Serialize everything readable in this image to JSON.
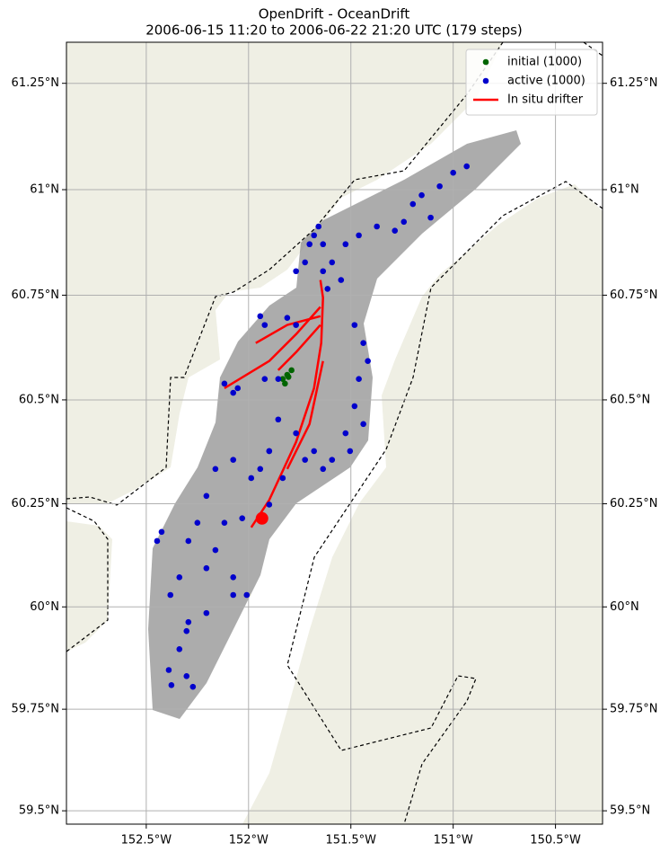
{
  "chart_data": {
    "type": "map",
    "title": "OpenDrift - OceanDrift",
    "subtitle": "2006-06-15 11:20 to 2006-06-22 21:20 UTC (179 steps)",
    "xlim": [
      -152.89,
      -150.27
    ],
    "ylim": [
      59.467,
      61.346
    ],
    "projection": "mercator",
    "grid": true,
    "legend": "upper right",
    "xticks": [
      {
        "value": -152.5,
        "label": "152.5°W"
      },
      {
        "value": -152,
        "label": "152°W"
      },
      {
        "value": -151.5,
        "label": "151.5°W"
      },
      {
        "value": -151,
        "label": "151°W"
      },
      {
        "value": -150.5,
        "label": "150.5°W"
      }
    ],
    "yticks": [
      {
        "value": 59.5,
        "label": "59.5°N"
      },
      {
        "value": 59.75,
        "label": "59.75°N"
      },
      {
        "value": 60,
        "label": "60°N"
      },
      {
        "value": 60.25,
        "label": "60.25°N"
      },
      {
        "value": 60.5,
        "label": "60.5°N"
      },
      {
        "value": 60.75,
        "label": "60.75°N"
      },
      {
        "value": 61,
        "label": "61°N"
      },
      {
        "value": 61.25,
        "label": "61.25°N"
      }
    ],
    "series": [
      {
        "name": "initial (1000)",
        "color": "#006400",
        "marker": "point",
        "x": [
          -151.811,
          -151.833,
          -151.79,
          -151.822,
          -151.805
        ],
        "y": [
          60.56,
          60.55,
          60.571,
          60.539,
          60.555
        ]
      },
      {
        "name": "active (1000)",
        "color": "#0000cc",
        "marker": "point",
        "x": [
          -150.934,
          -151.0,
          -151.066,
          -151.154,
          -151.197,
          -151.11,
          -151.241,
          -151.285,
          -151.373,
          -151.461,
          -151.526,
          -151.592,
          -151.636,
          -151.702,
          -151.724,
          -151.658,
          -151.548,
          -151.614,
          -151.482,
          -151.439,
          -151.417,
          -151.461,
          -151.482,
          -151.439,
          -151.526,
          -151.504,
          -151.592,
          -151.636,
          -151.68,
          -151.724,
          -151.768,
          -151.899,
          -151.943,
          -151.987,
          -152.075,
          -152.162,
          -152.206,
          -152.25,
          -152.294,
          -152.338,
          -152.382,
          -152.425,
          -152.447,
          -152.294,
          -152.338,
          -152.39,
          -152.303,
          -152.377,
          -152.272,
          -152.303,
          -152.206,
          -152.075,
          -152.009,
          -152.031,
          -152.118,
          -151.899,
          -152.053,
          -152.075,
          -152.118,
          -151.943,
          -151.921,
          -151.811,
          -151.768,
          -151.855,
          -151.921,
          -151.855,
          -151.899,
          -152.162,
          -152.075,
          -152.206,
          -151.833,
          -151.68,
          -151.636,
          -151.768
        ],
        "y": [
          61.055,
          61.04,
          61.008,
          60.987,
          60.966,
          60.934,
          60.924,
          60.903,
          60.913,
          60.892,
          60.871,
          60.828,
          60.807,
          60.871,
          60.828,
          60.913,
          60.786,
          60.765,
          60.679,
          60.636,
          60.593,
          60.55,
          60.485,
          60.442,
          60.42,
          60.377,
          60.356,
          60.334,
          60.377,
          60.356,
          60.42,
          60.377,
          60.334,
          60.312,
          60.356,
          60.334,
          60.269,
          60.204,
          60.16,
          60.072,
          60.029,
          60.182,
          60.16,
          59.963,
          59.897,
          59.846,
          59.831,
          59.809,
          59.805,
          59.941,
          59.985,
          60.029,
          60.029,
          60.215,
          60.204,
          60.248,
          60.528,
          60.517,
          60.539,
          60.7,
          60.679,
          60.696,
          60.679,
          60.55,
          60.55,
          60.453,
          60.377,
          60.138,
          60.072,
          60.094,
          60.312,
          60.892,
          60.871,
          60.807
        ]
      },
      {
        "name": "In situ drifter",
        "color": "#ff0000",
        "marker": "line",
        "x": [
          -151.987,
          -151.899,
          -151.768,
          -151.68,
          -151.645,
          -151.636,
          -151.649,
          null,
          -151.649,
          -151.768,
          -151.899,
          -152.118,
          null,
          -151.649,
          -151.811,
          -151.965,
          null,
          -151.649,
          -151.768,
          -151.855,
          null,
          -151.811,
          -151.702,
          -151.636
        ],
        "y": [
          60.193,
          60.259,
          60.399,
          60.528,
          60.636,
          60.744,
          60.786,
          null,
          60.722,
          60.657,
          60.593,
          60.528,
          null,
          60.7,
          60.679,
          60.636,
          null,
          60.679,
          60.614,
          60.571,
          null,
          60.334,
          60.442,
          60.593
        ]
      }
    ]
  }
}
